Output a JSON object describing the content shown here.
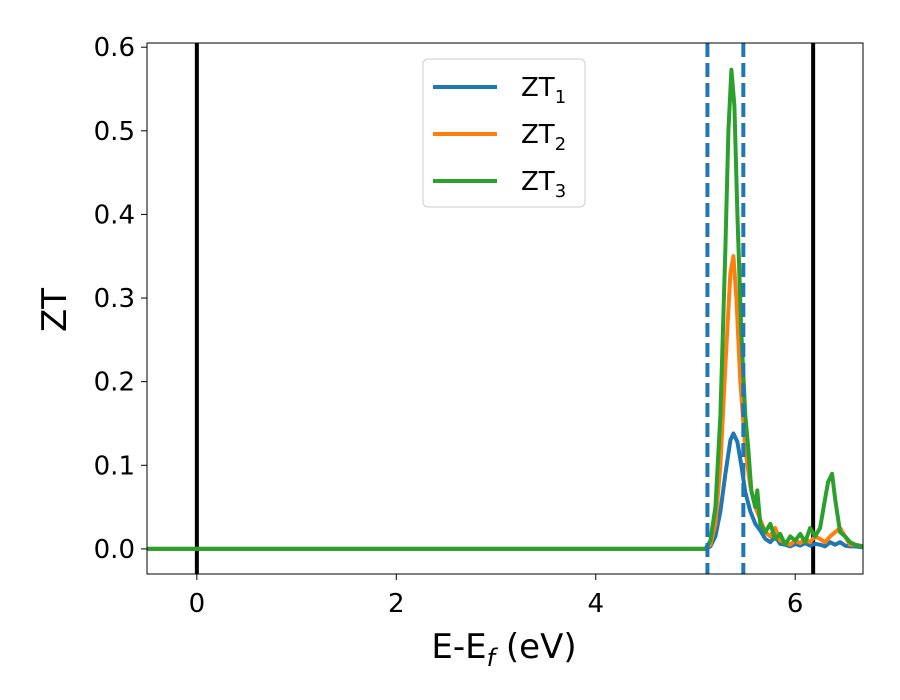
{
  "chart_data": {
    "type": "line",
    "xlabel_main": "E-E",
    "xlabel_sub": "f",
    "xlabel_unit": " (eV)",
    "ylabel": "ZT",
    "xlim": [
      -0.5,
      6.68
    ],
    "ylim": [
      -0.03,
      0.605
    ],
    "xticks": [
      0,
      2,
      4,
      6
    ],
    "yticks": [
      0.0,
      0.1,
      0.2,
      0.3,
      0.4,
      0.5,
      0.6
    ],
    "xtick_labels": [
      "0",
      "2",
      "4",
      "6"
    ],
    "ytick_labels": [
      "0.0",
      "0.1",
      "0.2",
      "0.3",
      "0.4",
      "0.5",
      "0.6"
    ],
    "grid": false,
    "legend_position": "top-center",
    "vlines_solid": [
      0.0,
      6.18
    ],
    "vlines_dashed": [
      5.12,
      5.48
    ],
    "vline_solid_color": "#000000",
    "vline_dashed_color": "#1f77b4",
    "series": [
      {
        "name_base": "ZT",
        "name_sub": "1",
        "color": "#1f77b4",
        "x": [
          -0.5,
          5.0,
          5.1,
          5.15,
          5.2,
          5.25,
          5.3,
          5.35,
          5.38,
          5.42,
          5.46,
          5.5,
          5.55,
          5.6,
          5.65,
          5.7,
          5.75,
          5.8,
          5.85,
          5.9,
          5.95,
          6.0,
          6.05,
          6.1,
          6.15,
          6.2,
          6.25,
          6.3,
          6.35,
          6.4,
          6.45,
          6.5,
          6.55,
          6.6,
          6.68
        ],
        "values": [
          0.0,
          0.0,
          0.0,
          0.003,
          0.015,
          0.045,
          0.09,
          0.13,
          0.138,
          0.128,
          0.1,
          0.068,
          0.045,
          0.03,
          0.022,
          0.012,
          0.008,
          0.015,
          0.006,
          0.005,
          0.003,
          0.006,
          0.004,
          0.007,
          0.004,
          0.006,
          0.005,
          0.003,
          0.008,
          0.005,
          0.008,
          0.004,
          0.003,
          0.003,
          0.002
        ]
      },
      {
        "name_base": "ZT",
        "name_sub": "2",
        "color": "#ff7f0e",
        "x": [
          -0.5,
          5.0,
          5.1,
          5.15,
          5.2,
          5.25,
          5.3,
          5.35,
          5.38,
          5.41,
          5.45,
          5.5,
          5.55,
          5.6,
          5.65,
          5.7,
          5.75,
          5.8,
          5.85,
          5.9,
          5.95,
          6.0,
          6.05,
          6.1,
          6.15,
          6.2,
          6.25,
          6.3,
          6.35,
          6.4,
          6.45,
          6.5,
          6.55,
          6.6,
          6.68
        ],
        "values": [
          0.0,
          0.0,
          0.0,
          0.005,
          0.03,
          0.1,
          0.22,
          0.33,
          0.35,
          0.3,
          0.2,
          0.12,
          0.075,
          0.05,
          0.035,
          0.02,
          0.015,
          0.025,
          0.01,
          0.008,
          0.005,
          0.01,
          0.007,
          0.012,
          0.008,
          0.015,
          0.012,
          0.008,
          0.015,
          0.02,
          0.025,
          0.015,
          0.005,
          0.005,
          0.003
        ]
      },
      {
        "name_base": "ZT",
        "name_sub": "3",
        "color": "#2ca02c",
        "x": [
          -0.5,
          5.0,
          5.1,
          5.15,
          5.2,
          5.25,
          5.3,
          5.33,
          5.36,
          5.39,
          5.42,
          5.46,
          5.5,
          5.53,
          5.56,
          5.6,
          5.62,
          5.65,
          5.7,
          5.75,
          5.8,
          5.85,
          5.9,
          5.95,
          6.0,
          6.05,
          6.1,
          6.15,
          6.2,
          6.25,
          6.3,
          6.33,
          6.37,
          6.4,
          6.45,
          6.5,
          6.55,
          6.6,
          6.68
        ],
        "values": [
          0.0,
          0.0,
          0.0,
          0.01,
          0.05,
          0.16,
          0.36,
          0.5,
          0.573,
          0.53,
          0.4,
          0.26,
          0.16,
          0.12,
          0.07,
          0.05,
          0.07,
          0.03,
          0.02,
          0.03,
          0.012,
          0.018,
          0.005,
          0.015,
          0.01,
          0.018,
          0.008,
          0.025,
          0.015,
          0.025,
          0.06,
          0.08,
          0.09,
          0.06,
          0.02,
          0.015,
          0.008,
          0.005,
          0.003
        ]
      }
    ]
  }
}
